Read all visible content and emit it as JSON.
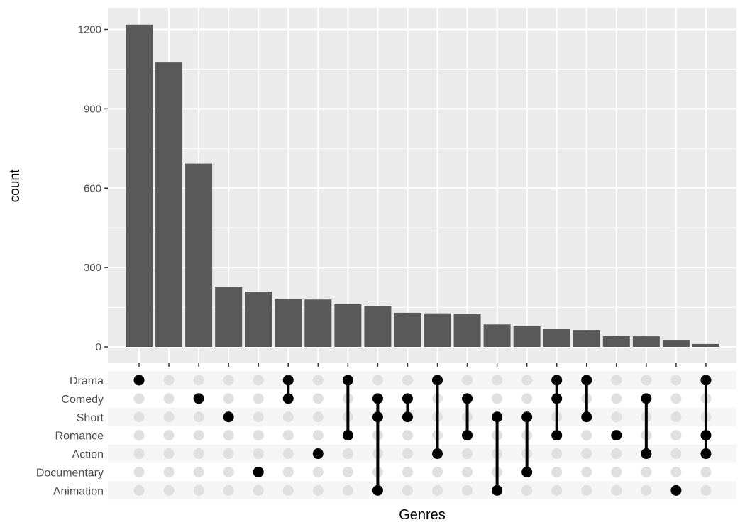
{
  "chart_data": {
    "type": "bar",
    "title": "",
    "xlabel": "Genres",
    "ylabel": "count",
    "ylim": [
      0,
      1260
    ],
    "yticks": [
      0,
      300,
      600,
      900,
      1200
    ],
    "grid": true,
    "values": [
      1218,
      1075,
      693,
      228,
      209,
      180,
      179,
      161,
      155,
      129,
      127,
      126,
      85,
      78,
      67,
      64,
      41,
      40,
      24,
      11
    ],
    "sets": [
      "Drama",
      "Comedy",
      "Short",
      "Romance",
      "Action",
      "Documentary",
      "Animation"
    ],
    "intersections": [
      [
        "Drama"
      ],
      [],
      [
        "Comedy"
      ],
      [
        "Short"
      ],
      [
        "Documentary"
      ],
      [
        "Drama",
        "Comedy"
      ],
      [
        "Action"
      ],
      [
        "Drama",
        "Romance"
      ],
      [
        "Comedy",
        "Short",
        "Animation"
      ],
      [
        "Comedy",
        "Short"
      ],
      [
        "Drama",
        "Action"
      ],
      [
        "Comedy",
        "Romance"
      ],
      [
        "Short",
        "Animation"
      ],
      [
        "Short",
        "Documentary"
      ],
      [
        "Drama",
        "Comedy",
        "Romance"
      ],
      [
        "Drama",
        "Short"
      ],
      [
        "Romance"
      ],
      [
        "Comedy",
        "Action"
      ],
      [
        "Animation"
      ],
      [
        "Drama",
        "Romance",
        "Action"
      ]
    ]
  },
  "colors": {
    "panel_bg": "#ebebeb",
    "grid": "#ffffff",
    "bar": "#595959",
    "dot_active": "#000000",
    "dot_inactive": "#e0e0e0",
    "stripe": "#f5f5f5",
    "axis_text": "#4d4d4d",
    "title_text": "#000000"
  }
}
